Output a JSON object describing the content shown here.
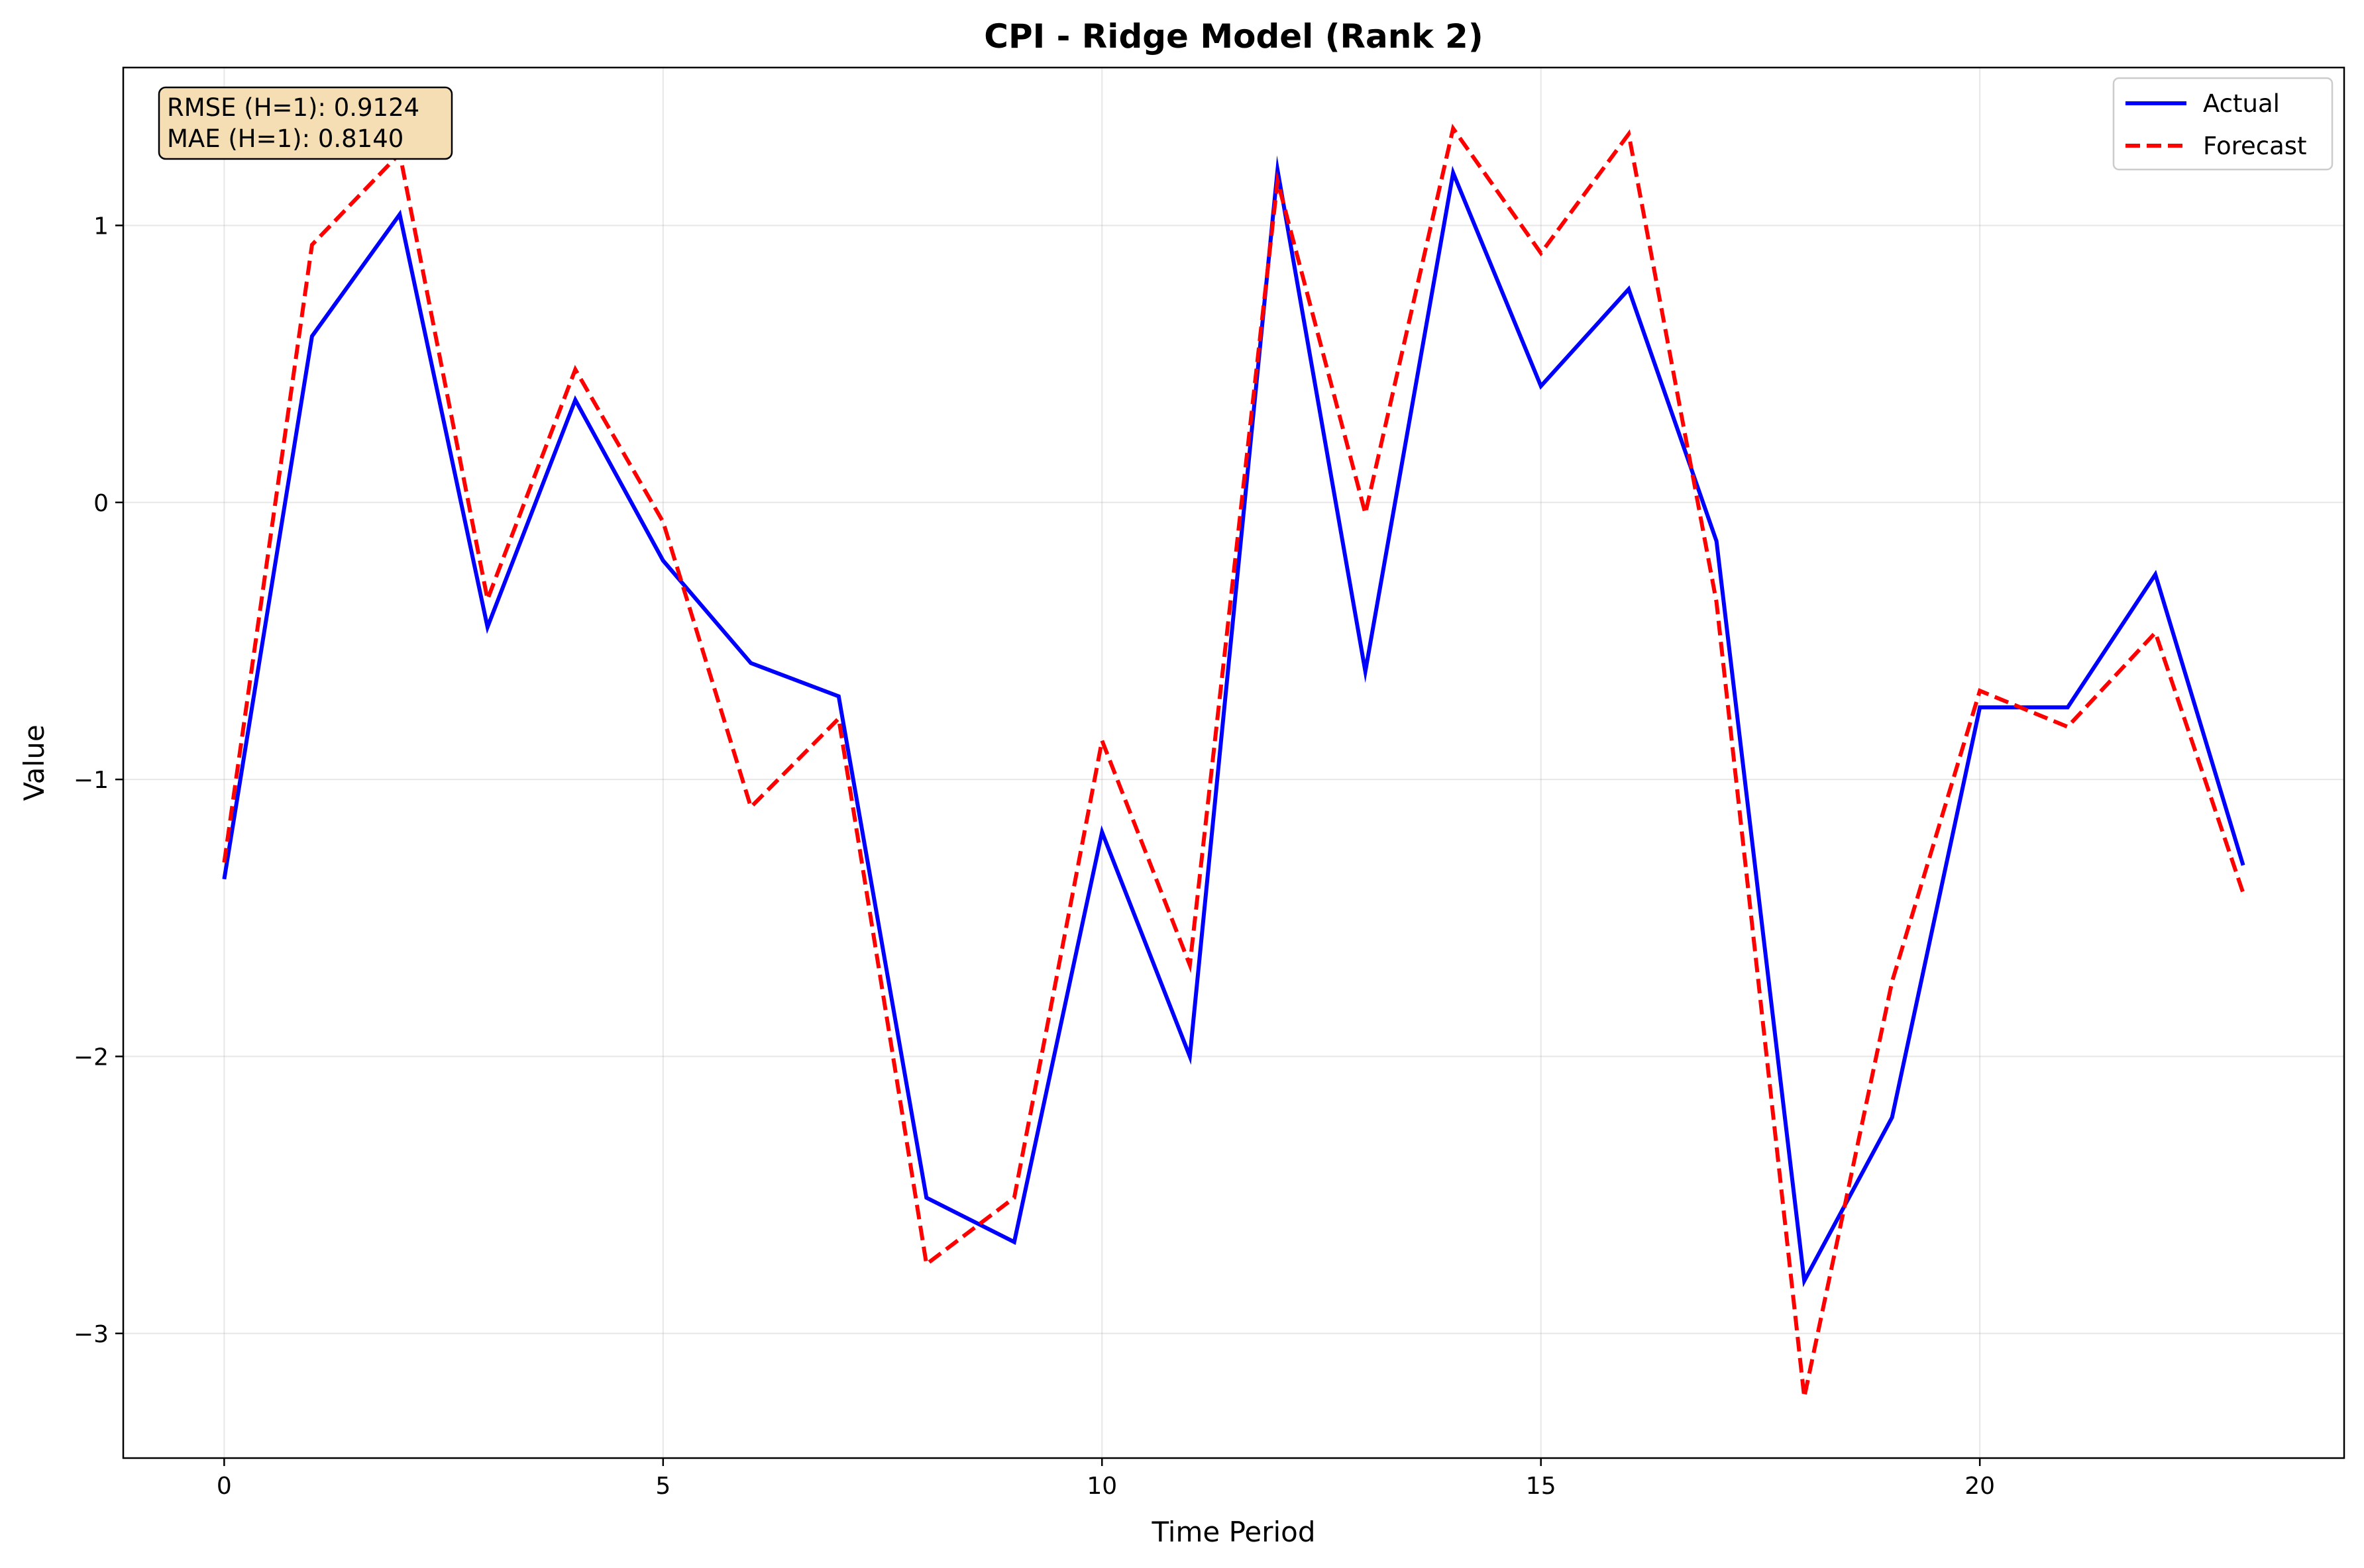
{
  "chart_data": {
    "type": "line",
    "title": "CPI - Ridge Model (Rank 2)",
    "xlabel": "Time Period",
    "ylabel": "Value",
    "xlim": [
      -1.15,
      24.15
    ],
    "ylim": [
      -3.45,
      1.57
    ],
    "xticks": [
      0,
      5,
      10,
      15,
      20
    ],
    "xtick_labels": [
      "0",
      "5",
      "10",
      "15",
      "20"
    ],
    "yticks": [
      -3,
      -2,
      -1,
      0,
      1
    ],
    "ytick_labels": [
      "−3",
      "−2",
      "−1",
      "0",
      "1"
    ],
    "grid": true,
    "legend_position": "top-right",
    "x": [
      0,
      1,
      2,
      3,
      4,
      5,
      6,
      7,
      8,
      9,
      10,
      11,
      12,
      13,
      14,
      15,
      16,
      17,
      18,
      19,
      20,
      21,
      22,
      23
    ],
    "series": [
      {
        "name": "Actual",
        "color": "#0000ff",
        "style": "solid",
        "values": [
          -1.36,
          0.6,
          1.04,
          -0.45,
          0.37,
          -0.21,
          -0.58,
          -0.7,
          -2.51,
          -2.67,
          -1.19,
          -2.0,
          1.2,
          -0.61,
          1.19,
          0.42,
          0.77,
          -0.14,
          -2.81,
          -2.22,
          -0.74,
          -0.74,
          -0.26,
          -1.31
        ]
      },
      {
        "name": "Forecast",
        "color": "#ff0000",
        "style": "dashed",
        "values": [
          -1.3,
          0.93,
          1.26,
          -0.35,
          0.48,
          -0.07,
          -1.1,
          -0.78,
          -2.75,
          -2.51,
          -0.86,
          -1.67,
          1.16,
          -0.04,
          1.35,
          0.9,
          1.33,
          -0.36,
          -3.23,
          -1.73,
          -0.68,
          -0.81,
          -0.47,
          -1.41
        ]
      }
    ],
    "annotations": [
      "RMSE (H=1): 0.9124",
      "MAE (H=1): 0.8140"
    ],
    "annotation_bg": "#f5deb3"
  }
}
